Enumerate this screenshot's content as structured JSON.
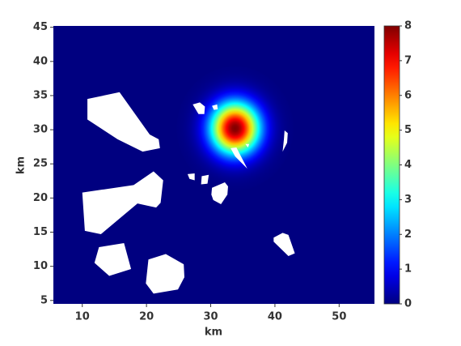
{
  "chart_data": {
    "type": "heatmap",
    "xlabel": "km",
    "ylabel": "km",
    "xlim": [
      5.5,
      55.5
    ],
    "ylim": [
      4.5,
      45.2
    ],
    "xticks": [
      10,
      20,
      30,
      40,
      50
    ],
    "yticks": [
      5,
      10,
      15,
      20,
      25,
      30,
      35,
      40,
      45
    ],
    "colormap": "jet",
    "clim": [
      0,
      8
    ],
    "cticks": [
      0,
      1,
      2,
      3,
      4,
      5,
      6,
      7,
      8
    ],
    "background": 0,
    "peaks": [
      {
        "x": 33.8,
        "y": 30.2,
        "value": 8,
        "sigma": 2.6
      }
    ],
    "obstacles": [
      [
        [
          10.8,
          34.5
        ],
        [
          15.8,
          35.5
        ],
        [
          20.5,
          29.3
        ],
        [
          21.9,
          28.6
        ],
        [
          22.1,
          27.3
        ],
        [
          19.4,
          26.8
        ],
        [
          15.5,
          28.6
        ],
        [
          10.8,
          31.5
        ]
      ],
      [
        [
          10.0,
          20.8
        ],
        [
          18.0,
          21.9
        ],
        [
          21.1,
          23.9
        ],
        [
          22.6,
          22.6
        ],
        [
          22.2,
          19.3
        ],
        [
          21.5,
          18.6
        ],
        [
          18.6,
          19.2
        ],
        [
          12.9,
          14.7
        ],
        [
          10.4,
          15.2
        ]
      ],
      [
        [
          12.6,
          12.8
        ],
        [
          16.5,
          13.4
        ],
        [
          17.6,
          9.6
        ],
        [
          14.2,
          8.6
        ],
        [
          11.9,
          10.5
        ]
      ],
      [
        [
          20.3,
          11.0
        ],
        [
          23.0,
          11.8
        ],
        [
          25.8,
          10.3
        ],
        [
          25.9,
          8.4
        ],
        [
          24.9,
          6.6
        ],
        [
          21.1,
          6.0
        ],
        [
          19.9,
          7.5
        ]
      ],
      [
        [
          27.2,
          33.7
        ],
        [
          28.3,
          34.0
        ],
        [
          29.1,
          33.4
        ],
        [
          29.0,
          32.3
        ],
        [
          28.1,
          32.3
        ]
      ],
      [
        [
          30.2,
          33.5
        ],
        [
          31.0,
          33.7
        ],
        [
          31.1,
          33.0
        ],
        [
          30.5,
          32.9
        ]
      ],
      [
        [
          41.5,
          29.9
        ],
        [
          42.0,
          29.5
        ],
        [
          41.9,
          28.1
        ],
        [
          41.2,
          26.8
        ],
        [
          41.4,
          28.6
        ]
      ],
      [
        [
          33.1,
          27.3
        ],
        [
          34.0,
          27.4
        ],
        [
          35.7,
          24.3
        ],
        [
          33.8,
          26.1
        ]
      ],
      [
        [
          35.4,
          27.9
        ],
        [
          36.0,
          27.9
        ],
        [
          35.8,
          27.4
        ]
      ],
      [
        [
          26.4,
          23.5
        ],
        [
          27.5,
          23.6
        ],
        [
          27.5,
          22.6
        ],
        [
          26.7,
          22.8
        ]
      ],
      [
        [
          28.6,
          23.2
        ],
        [
          29.7,
          23.4
        ],
        [
          29.5,
          22.1
        ],
        [
          28.5,
          22.0
        ]
      ],
      [
        [
          30.2,
          21.5
        ],
        [
          32.2,
          22.3
        ],
        [
          32.7,
          21.7
        ],
        [
          32.6,
          20.5
        ],
        [
          31.6,
          19.1
        ],
        [
          30.4,
          19.7
        ],
        [
          30.1,
          20.5
        ]
      ],
      [
        [
          39.8,
          14.2
        ],
        [
          41.2,
          14.9
        ],
        [
          42.1,
          14.6
        ],
        [
          43.1,
          11.9
        ],
        [
          42.1,
          11.5
        ],
        [
          39.8,
          13.6
        ]
      ]
    ]
  }
}
